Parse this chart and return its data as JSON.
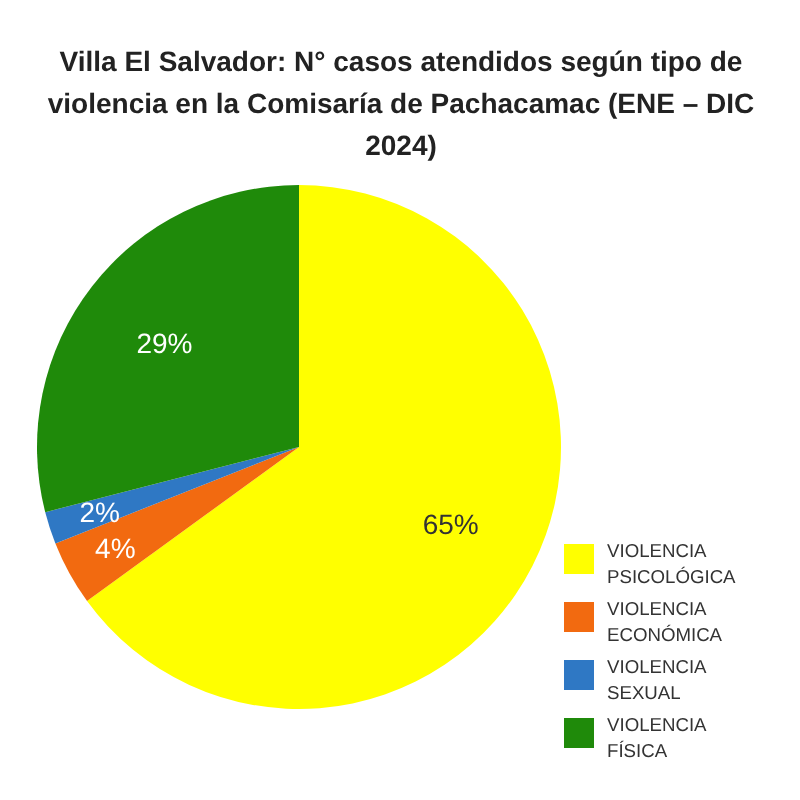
{
  "chart_data": {
    "type": "pie",
    "title": "Villa El Salvador: N° casos atendidos según tipo de violencia en la Comisaría de Pachacamac (ENE – DIC 2024)",
    "categories": [
      "VIOLENCIA PSICOLÓGICA",
      "VIOLENCIA ECONÓMICA",
      "VIOLENCIA SEXUAL",
      "VIOLENCIA FÍSICA"
    ],
    "values": [
      65,
      4,
      2,
      29
    ],
    "value_labels": [
      "65%",
      "4%",
      "2%",
      "29%"
    ],
    "colors": [
      "#ffff00",
      "#f26a10",
      "#2f78c4",
      "#1f8a0a"
    ],
    "legend": "bottom right"
  }
}
